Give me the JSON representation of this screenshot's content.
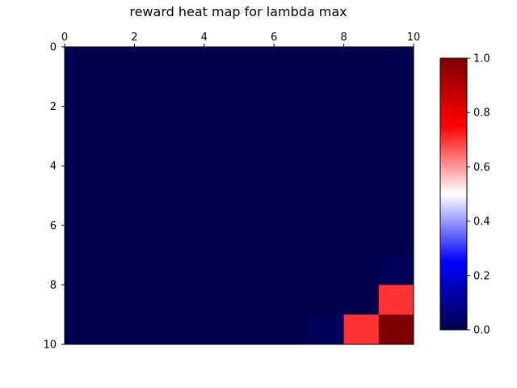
{
  "chart_data": {
    "type": "heatmap",
    "title": "reward heat map for lambda max",
    "xlabel": "",
    "ylabel": "",
    "x_range": [
      0,
      10
    ],
    "y_range": [
      0,
      10
    ],
    "x_ticks": [
      0,
      2,
      4,
      6,
      8,
      10
    ],
    "y_ticks": [
      0,
      2,
      4,
      6,
      8,
      10
    ],
    "x_axis_position": "top",
    "y_axis_inverted": true,
    "grid": false,
    "colormap": "seismic",
    "colorbar": {
      "range": [
        0.0,
        1.0
      ],
      "ticks": [
        0.0,
        0.2,
        0.4,
        0.6,
        0.8,
        1.0
      ],
      "tick_labels": [
        "0.0",
        "0.2",
        "0.4",
        "0.6",
        "0.8",
        "1.0"
      ],
      "placement": "right"
    },
    "matrix": [
      [
        0,
        0,
        0,
        0,
        0,
        0,
        0,
        0,
        0,
        0
      ],
      [
        0,
        0,
        0,
        0,
        0,
        0,
        0,
        0,
        0,
        0
      ],
      [
        0,
        0,
        0,
        0,
        0,
        0,
        0,
        0,
        0,
        0
      ],
      [
        0,
        0,
        0,
        0,
        0,
        0,
        0,
        0,
        0,
        0
      ],
      [
        0,
        0,
        0,
        0,
        0,
        0,
        0,
        0,
        0,
        0
      ],
      [
        0,
        0,
        0,
        0,
        0,
        0,
        0,
        0,
        0,
        0
      ],
      [
        0,
        0,
        0,
        0,
        0,
        0,
        0,
        0,
        0,
        0
      ],
      [
        0,
        0,
        0,
        0,
        0,
        0,
        0,
        0,
        0,
        0.02
      ],
      [
        0,
        0,
        0,
        0,
        0,
        0,
        0,
        0,
        0,
        0.7
      ],
      [
        0,
        0,
        0,
        0,
        0,
        0,
        0,
        0.02,
        0.7,
        1.0
      ]
    ]
  }
}
